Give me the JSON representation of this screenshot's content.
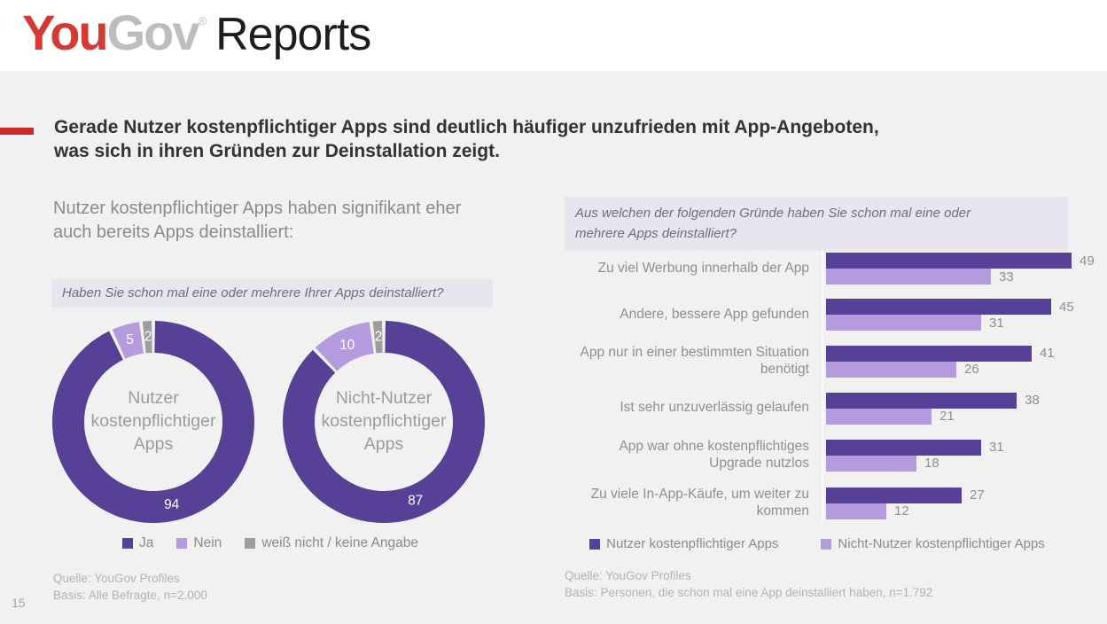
{
  "header": {
    "logo_you": "You",
    "logo_gov": "Gov",
    "logo_reg": "®",
    "logo_suffix": "Reports"
  },
  "headline": "Gerade Nutzer kostenpflichtiger Apps sind deutlich häufiger unzufrieden mit App-Angeboten,\nwas sich in ihren Gründen zur Deinstallation zeigt.",
  "page_number": "15",
  "colors": {
    "background": "#f2f1f2",
    "header_bg": "#ffffff",
    "accent_red": "#cc2b2b",
    "logo_red": "#d43a34",
    "logo_gray": "#bcbdc0",
    "primary_purple": "#564196",
    "light_purple": "#b49bde",
    "slice_gray": "#9d9d9d",
    "question_box_bg": "#e9e5ef"
  },
  "left_panel": {
    "subtitle": "Nutzer kostenpflichtiger Apps haben signifikant eher\nauch bereits Apps deinstalliert:",
    "question": "Haben Sie schon mal eine oder mehrere Ihrer Apps deinstalliert?",
    "source_line1": "Quelle: YouGov Profiles",
    "source_line2": "Basis: Alle Befragte, n=2.000"
  },
  "right_panel": {
    "question": "Aus welchen der folgenden Gründe haben Sie schon mal eine oder\nmehrere Apps deinstalliert?",
    "source_line1": "Quelle: YouGov Profiles",
    "source_line2": "Basis: Personen, die schon mal eine App deinstalliert haben, n=1.792"
  },
  "chart_data": [
    {
      "type": "pie",
      "variant": "donut",
      "title": "Nutzer\nkostenpflichtiger\nApps",
      "labels": [
        "Ja",
        "Nein",
        "weiß nicht / keine Angabe"
      ],
      "values": [
        94,
        5,
        2
      ],
      "colors": [
        "#564196",
        "#b49bde",
        "#9d9d9d"
      ],
      "unit": "%",
      "legend_position": "bottom"
    },
    {
      "type": "pie",
      "variant": "donut",
      "title": "Nicht-Nutzer\nkostenpflichtiger\nApps",
      "labels": [
        "Ja",
        "Nein",
        "weiß nicht / keine Angabe"
      ],
      "values": [
        87,
        10,
        2
      ],
      "colors": [
        "#564196",
        "#b49bde",
        "#9d9d9d"
      ],
      "unit": "%",
      "legend_position": "bottom"
    },
    {
      "type": "bar",
      "orientation": "horizontal",
      "title": "Aus welchen der folgenden Gründe haben Sie schon mal eine oder mehrere Apps deinstalliert?",
      "categories": [
        "Zu viel Werbung innerhalb der App",
        "Andere, bessere App gefunden",
        "App nur in einer bestimmten Situation\nbenötigt",
        "Ist sehr unzuverlässig gelaufen",
        "App war ohne kostenpflichtiges\nUpgrade nutzlos",
        "Zu viele In-App-Käufe, um weiter zu\nkommen"
      ],
      "series": [
        {
          "name": "Nutzer kostenpflichtiger Apps",
          "color": "#564196",
          "values": [
            49,
            45,
            41,
            38,
            31,
            27
          ]
        },
        {
          "name": "Nicht-Nutzer kostenpflichtiger Apps",
          "color": "#b49bde",
          "values": [
            33,
            31,
            26,
            21,
            18,
            12
          ]
        }
      ],
      "unit": "%",
      "grid": false,
      "legend_position": "bottom"
    }
  ]
}
